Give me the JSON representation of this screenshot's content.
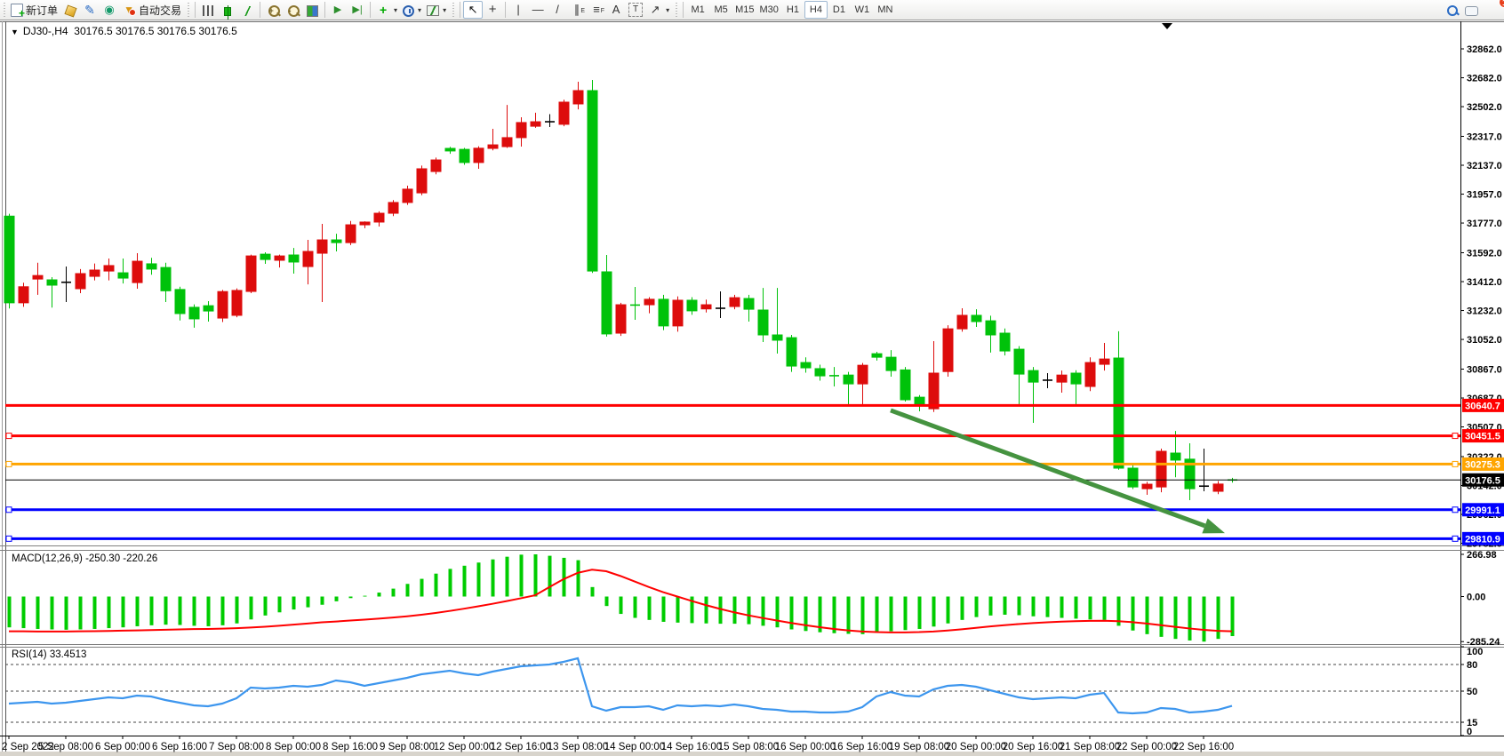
{
  "toolbar": {
    "new_order_label": "新订单",
    "auto_trading_label": "自动交易",
    "timeframes": [
      "M1",
      "M5",
      "M15",
      "M30",
      "H1",
      "H4",
      "D1",
      "W1",
      "MN"
    ],
    "active_timeframe": "H4",
    "zoom_in_glyph": "+",
    "zoom_out_glyph": "-",
    "notification_count": "1"
  },
  "chart": {
    "symbol_label": "DJ30-,H4",
    "ohlc_label": "30176.5 30176.5 30176.5 30176.5",
    "macd_label": "MACD(12,26,9) -250.30 -220.26",
    "rsi_label": "RSI(14) 33.4513"
  },
  "chart_data": {
    "type": "candlestick",
    "symbol": "DJ30-",
    "timeframe": "H4",
    "colors": {
      "up": "#dd0c0c",
      "down": "#00c20a",
      "doji": "#000000",
      "macd_hist": "#00cc00",
      "macd_signal": "#ff0000",
      "rsi_line": "#3d96ee",
      "arrow": "#459340"
    },
    "price_axis_ticks": [
      32862.0,
      32682.0,
      32502.0,
      32317.0,
      32137.0,
      31957.0,
      31777.0,
      31592.0,
      31412.0,
      31232.0,
      31052.0,
      30867.0,
      30687.0,
      30507.0,
      30322.0,
      30142.0,
      29962.0,
      29782.0
    ],
    "time_labels": [
      "2 Sep 2022",
      "5 Sep 08:00",
      "6 Sep 00:00",
      "6 Sep 16:00",
      "7 Sep 08:00",
      "8 Sep 00:00",
      "8 Sep 16:00",
      "9 Sep 08:00",
      "12 Sep 00:00",
      "12 Sep 16:00",
      "13 Sep 08:00",
      "14 Sep 00:00",
      "14 Sep 16:00",
      "15 Sep 08:00",
      "16 Sep 00:00",
      "16 Sep 16:00",
      "19 Sep 08:00",
      "20 Sep 00:00",
      "20 Sep 16:00",
      "21 Sep 08:00",
      "22 Sep 00:00",
      "22 Sep 16:00"
    ],
    "candles": [
      [
        31820,
        31835,
        31245,
        31280
      ],
      [
        31280,
        31405,
        31255,
        31380
      ],
      [
        31428,
        31530,
        31330,
        31450
      ],
      [
        31423,
        31440,
        31250,
        31390
      ],
      [
        31408,
        31506,
        31285,
        31408
      ],
      [
        31368,
        31490,
        31340,
        31462
      ],
      [
        31445,
        31525,
        31420,
        31484
      ],
      [
        31478,
        31556,
        31420,
        31512
      ],
      [
        31467,
        31556,
        31400,
        31434
      ],
      [
        31406,
        31589,
        31368,
        31539
      ],
      [
        31523,
        31560,
        31455,
        31490
      ],
      [
        31500,
        31530,
        31285,
        31355
      ],
      [
        31363,
        31380,
        31170,
        31213
      ],
      [
        31252,
        31270,
        31125,
        31180
      ],
      [
        31262,
        31290,
        31163,
        31229
      ],
      [
        31185,
        31360,
        31160,
        31350
      ],
      [
        31202,
        31370,
        31190,
        31357
      ],
      [
        31351,
        31580,
        31340,
        31572
      ],
      [
        31583,
        31595,
        31523,
        31550
      ],
      [
        31545,
        31580,
        31500,
        31572
      ],
      [
        31578,
        31622,
        31462,
        31534
      ],
      [
        31506,
        31672,
        31395,
        31600
      ],
      [
        31589,
        31772,
        31285,
        31672
      ],
      [
        31672,
        31710,
        31600,
        31655
      ],
      [
        31655,
        31790,
        31640,
        31766
      ],
      [
        31766,
        31788,
        31745,
        31783
      ],
      [
        31783,
        31850,
        31755,
        31838
      ],
      [
        31838,
        31920,
        31820,
        31905
      ],
      [
        31905,
        32010,
        31890,
        31988
      ],
      [
        31965,
        32135,
        31950,
        32115
      ],
      [
        32098,
        32185,
        32080,
        32170
      ],
      [
        32242,
        32252,
        32208,
        32226
      ],
      [
        32236,
        32245,
        32140,
        32154
      ],
      [
        32154,
        32255,
        32115,
        32243
      ],
      [
        32242,
        32364,
        32230,
        32264
      ],
      [
        32253,
        32513,
        32245,
        32309
      ],
      [
        32309,
        32436,
        32253,
        32403
      ],
      [
        32380,
        32464,
        32370,
        32408
      ],
      [
        32408,
        32455,
        32375,
        32408
      ],
      [
        32392,
        32545,
        32380,
        32530
      ],
      [
        32519,
        32657,
        32485,
        32602
      ],
      [
        32602,
        32668,
        31466,
        31478
      ],
      [
        31473,
        31578,
        31070,
        31086
      ],
      [
        31091,
        31280,
        31074,
        31268
      ],
      [
        31268,
        31379,
        31174,
        31266
      ],
      [
        31268,
        31315,
        31215,
        31302
      ],
      [
        31302,
        31330,
        31110,
        31136
      ],
      [
        31136,
        31320,
        31100,
        31296
      ],
      [
        31296,
        31315,
        31205,
        31230
      ],
      [
        31242,
        31300,
        31220,
        31268
      ],
      [
        31246,
        31351,
        31185,
        31246
      ],
      [
        31257,
        31330,
        31240,
        31312
      ],
      [
        31307,
        31330,
        31163,
        31240
      ],
      [
        31235,
        31373,
        31036,
        31080
      ],
      [
        31080,
        31373,
        30964,
        31047
      ],
      [
        31063,
        31080,
        30850,
        30886
      ],
      [
        30908,
        30940,
        30845,
        30875
      ],
      [
        30870,
        30895,
        30795,
        30825
      ],
      [
        30828,
        30880,
        30759,
        30826
      ],
      [
        30830,
        30850,
        30637,
        30775
      ],
      [
        30775,
        30905,
        30637,
        30891
      ],
      [
        30963,
        30975,
        30920,
        30941
      ],
      [
        30941,
        30985,
        30820,
        30858
      ],
      [
        30862,
        30880,
        30665,
        30676
      ],
      [
        30692,
        30705,
        30604,
        30642
      ],
      [
        30620,
        31041,
        30600,
        30842
      ],
      [
        30852,
        31140,
        30820,
        31118
      ],
      [
        31118,
        31246,
        31100,
        31202
      ],
      [
        31202,
        31240,
        31130,
        31163
      ],
      [
        31168,
        31200,
        30970,
        31080
      ],
      [
        31091,
        31120,
        30952,
        30980
      ],
      [
        30991,
        31010,
        30637,
        30836
      ],
      [
        30858,
        30880,
        30532,
        30786
      ],
      [
        30798,
        30842,
        30748,
        30798
      ],
      [
        30786,
        30858,
        30720,
        30830
      ],
      [
        30842,
        30860,
        30648,
        30775
      ],
      [
        30759,
        30940,
        30730,
        30908
      ],
      [
        30897,
        31030,
        30858,
        30930
      ],
      [
        30936,
        31103,
        30240,
        30250
      ],
      [
        30250,
        30280,
        30120,
        30133
      ],
      [
        30122,
        30165,
        30084,
        30150
      ],
      [
        30133,
        30372,
        30100,
        30355
      ],
      [
        30344,
        30482,
        30193,
        30300
      ],
      [
        30306,
        30405,
        30051,
        30122
      ],
      [
        30138,
        30372,
        30106,
        30138
      ],
      [
        30106,
        30170,
        30088,
        30151
      ],
      [
        30180,
        30190,
        30160,
        30176.5
      ]
    ],
    "hlines": [
      {
        "price": 30640.7,
        "color": "#ff0000",
        "width": 3,
        "handles": false
      },
      {
        "price": 30451.5,
        "color": "#ff0000",
        "width": 3,
        "handles": true
      },
      {
        "price": 30275.3,
        "color": "#ffa500",
        "width": 3,
        "handles": true
      },
      {
        "price": 30176.5,
        "color": "#000000",
        "width": 1,
        "handles": false,
        "is_current_price": true
      },
      {
        "price": 29991.1,
        "color": "#0000ff",
        "width": 3,
        "handles": true
      },
      {
        "price": 29810.9,
        "color": "#0000ff",
        "width": 3,
        "handles": true
      }
    ],
    "arrow_object": {
      "from_bar": 62,
      "from_price": 30610,
      "to_bar": 85.5,
      "to_price": 29845
    },
    "macd": {
      "params": "12,26,9",
      "current_hist": -250.3,
      "current_signal": -220.26,
      "axis_labels": [
        266.98,
        0.0,
        -285.24
      ],
      "hist": [
        -195,
        -200,
        -205,
        -208,
        -210,
        -208,
        -205,
        -200,
        -195,
        -188,
        -182,
        -178,
        -180,
        -185,
        -188,
        -182,
        -170,
        -145,
        -120,
        -100,
        -82,
        -68,
        -52,
        -30,
        -10,
        5,
        25,
        50,
        80,
        112,
        145,
        175,
        195,
        215,
        235,
        252,
        265,
        266.98,
        258,
        245,
        230,
        60,
        -60,
        -110,
        -135,
        -148,
        -160,
        -165,
        -168,
        -170,
        -172,
        -172,
        -175,
        -185,
        -195,
        -208,
        -218,
        -226,
        -232,
        -236,
        -238,
        -230,
        -220,
        -212,
        -205,
        -190,
        -170,
        -148,
        -130,
        -120,
        -115,
        -118,
        -125,
        -130,
        -135,
        -140,
        -145,
        -148,
        -185,
        -215,
        -238,
        -255,
        -268,
        -278,
        -285.24,
        -268,
        -250.3
      ],
      "signal": [
        -220,
        -220,
        -221,
        -221,
        -221,
        -220,
        -219,
        -218,
        -216,
        -214,
        -212,
        -210,
        -208,
        -206,
        -205,
        -203,
        -200,
        -196,
        -191,
        -185,
        -178,
        -171,
        -163,
        -158,
        -152,
        -146,
        -140,
        -133,
        -125,
        -115,
        -104,
        -91,
        -77,
        -62,
        -46,
        -29,
        -11,
        8,
        60,
        110,
        150,
        170,
        160,
        130,
        95,
        60,
        28,
        0,
        -28,
        -54,
        -78,
        -100,
        -119,
        -136,
        -152,
        -167,
        -181,
        -194,
        -205,
        -214,
        -221,
        -225,
        -227,
        -227,
        -225,
        -221,
        -215,
        -207,
        -198,
        -189,
        -181,
        -174,
        -168,
        -163,
        -159,
        -156,
        -154,
        -153,
        -156,
        -162,
        -171,
        -181,
        -192,
        -202,
        -211,
        -217,
        -220.26
      ]
    },
    "rsi": {
      "period": 14,
      "current": 33.4513,
      "levels": [
        80,
        50,
        15
      ],
      "axis_labels": [
        100,
        80,
        50,
        15,
        0
      ],
      "values": [
        36,
        37,
        38,
        36,
        37,
        39,
        41,
        43,
        42,
        45,
        44,
        40,
        37,
        34,
        33,
        36,
        42,
        54,
        53,
        54,
        56,
        55,
        57,
        62,
        60,
        56,
        59,
        62,
        65,
        69,
        71,
        73,
        70,
        68,
        72,
        75,
        78,
        79,
        80,
        83,
        87,
        33,
        28,
        32,
        32,
        33,
        29,
        34,
        33,
        34,
        33,
        35,
        33,
        30,
        29,
        27,
        27,
        26,
        26,
        27,
        32,
        44,
        49,
        45,
        44,
        52,
        56,
        57,
        55,
        51,
        47,
        43,
        41,
        42,
        43,
        42,
        46,
        48,
        26,
        25,
        26,
        31,
        30,
        26,
        27,
        29,
        33.4513
      ]
    }
  }
}
